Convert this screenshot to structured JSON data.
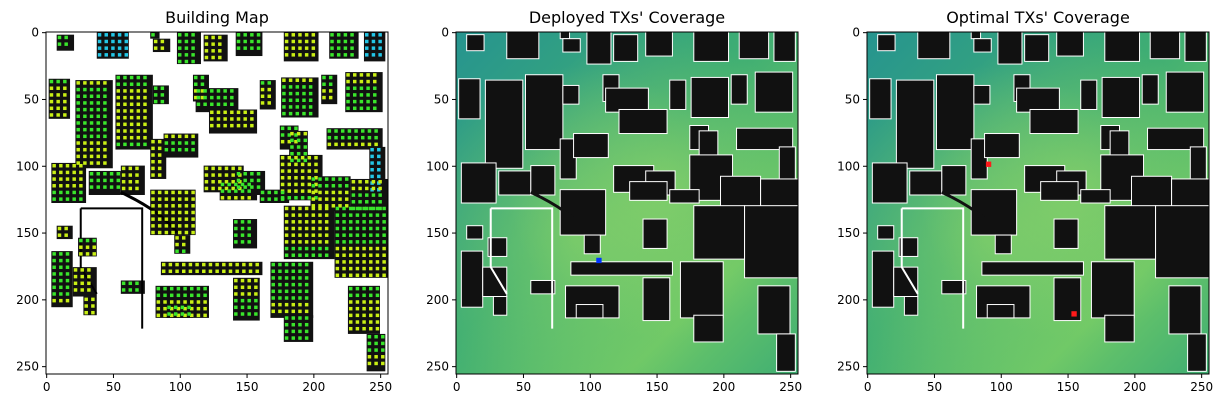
{
  "panels": [
    {
      "title": "Building Map"
    },
    {
      "title": "Deployed TXs' Coverage"
    },
    {
      "title": "Optimal TXs' Coverage"
    }
  ],
  "axes": {
    "x_ticks": [
      "0",
      "50",
      "100",
      "150",
      "200",
      "250"
    ],
    "y_ticks": [
      "0",
      "50",
      "100",
      "150",
      "200",
      "250"
    ],
    "range": [
      0,
      256
    ]
  },
  "colors": {
    "building": "#111111",
    "building_outline": "#ffffff",
    "coverage_base": "#3fae73",
    "coverage_light": "#7ccf62",
    "coverage_dark": "#1f7f8a",
    "rx_green": "#39e52b",
    "rx_yellow": "#c9ef14",
    "rx_cyan": "#23c6e6",
    "tx_deployed": "#0033ff",
    "tx_optimal": "#ff1a1a"
  },
  "markers": {
    "deployed_tx": {
      "x": 107,
      "y": 171
    },
    "optimal_tx": [
      {
        "x": 91,
        "y": 99
      },
      {
        "x": 155,
        "y": 211
      }
    ]
  }
}
